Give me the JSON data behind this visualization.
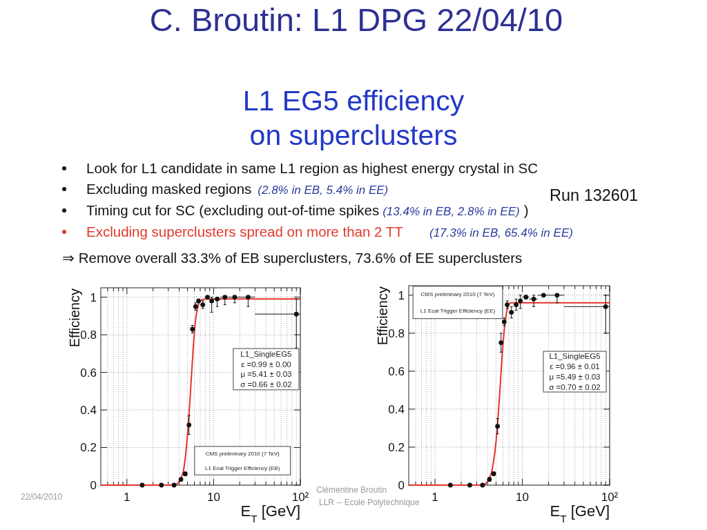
{
  "chart_data": [
    {
      "type": "other",
      "title": "C. Broutin: L1 DPG 22/04/10",
      "subtitle": "L1 EG5 efficiency on superclusters",
      "annotations": [
        "Look for L1 candidate in same L1 region as highest energy crystal in SC",
        "Excluding masked regions",
        "(2.8% in EB, 5.4% in EE)",
        "Timing cut for SC (excluding out-of-time spikes",
        "(13.4% in EB, 2.8% in EE)",
        ")",
        "Excluding superclusters spread on more than 2 TT",
        "(17.3% in EB, 65.4% in EE)",
        "⇒ Remove overall 33.3% of EB superclusters, 73.6% of EE superclusters",
        "Run 132601",
        "22/04/2010",
        "Clémentine Broutin",
        "LLR -- Ecole Polytechnique"
      ]
    },
    {
      "type": "scatter",
      "xlabel": "E$_{T}$ [GeV]",
      "ylabel": "Efficiency",
      "log": "x",
      "xlim": [
        0.5,
        100
      ],
      "ylim": [
        0,
        1.05
      ],
      "xticks": [
        {
          "value": 0.6,
          "label": null
        },
        {
          "value": 0.7,
          "label": null
        },
        {
          "value": 0.8,
          "label": null
        },
        {
          "value": 0.9,
          "label": null
        },
        {
          "value": 1,
          "label": "1"
        },
        {
          "value": 2,
          "label": null
        },
        {
          "value": 3,
          "label": null
        },
        {
          "value": 4,
          "label": null
        },
        {
          "value": 5,
          "label": null
        },
        {
          "value": 6,
          "label": null
        },
        {
          "value": 7,
          "label": null
        },
        {
          "value": 8,
          "label": null
        },
        {
          "value": 9,
          "label": null
        },
        {
          "value": 10,
          "label": "10"
        },
        {
          "value": 20,
          "label": null
        },
        {
          "value": 30,
          "label": null
        },
        {
          "value": 40,
          "label": null
        },
        {
          "value": 50,
          "label": null
        },
        {
          "value": 60,
          "label": null
        },
        {
          "value": 70,
          "label": null
        },
        {
          "value": 80,
          "label": null
        },
        {
          "value": 90,
          "label": null
        },
        {
          "value": 100,
          "label": "10²"
        }
      ],
      "yticks": [
        0,
        0.2,
        0.4,
        0.6,
        0.8,
        1
      ],
      "grid": true,
      "annotations": [
        "L1_SingleEG5",
        "ε =0.99 ± 0.00",
        "μ =5.41 ± 0.03",
        "σ =0.66 ± 0.02",
        "CMS preliminary 2010 (7 TeV)",
        "L1 Ecal Trigger Efficiency (EB)"
      ],
      "series": [
        {
          "color": "#111111",
          "marker": "circle",
          "x": [
            1.5,
            2.5,
            3.5,
            4.2,
            4.7,
            5.2,
            5.7,
            6.2,
            6.7,
            7.5,
            8.5,
            9.5,
            11,
            13.5,
            17.5,
            25,
            90
          ],
          "values": [
            0,
            0,
            0,
            0.03,
            0.06,
            0.32,
            0.83,
            0.95,
            0.98,
            0.96,
            1,
            0.98,
            0.99,
            1,
            1,
            1,
            0.91
          ],
          "errors": [
            null,
            null,
            null,
            0.01,
            0.01,
            0.05,
            0.02,
            0.02,
            0.01,
            0.02,
            null,
            [
              0.92,
              1
            ],
            [
              0.95,
              1
            ],
            [
              0.96,
              1
            ],
            [
              0.97,
              1
            ],
            [
              0.95,
              1
            ],
            [
              0.73,
              0.99
            ]
          ],
          "xerrors": [
            null,
            null,
            null,
            null,
            null,
            null,
            null,
            null,
            null,
            [
              7,
              8
            ],
            [
              8,
              9
            ],
            [
              9,
              10
            ],
            [
              10,
              12
            ],
            [
              12,
              15
            ],
            [
              15,
              20
            ],
            [
              20,
              30
            ],
            [
              30,
              100
            ]
          ]
        },
        {
          "type": "line",
          "color": "#e5332a",
          "marker": "none",
          "x": [
            0.5,
            3.5,
            4,
            4.5,
            5,
            5.4,
            5.8,
            6.2,
            6.6,
            7,
            8,
            100
          ],
          "values": [
            0,
            0,
            0.02,
            0.08,
            0.27,
            0.49,
            0.72,
            0.88,
            0.95,
            0.98,
            0.99,
            0.99
          ]
        }
      ]
    },
    {
      "type": "scatter",
      "xlabel": "E$_{T}$ [GeV]",
      "ylabel": "Efficiency",
      "log": "x",
      "xlim": [
        0.5,
        100
      ],
      "ylim": [
        0,
        1.05
      ],
      "xticks": [
        {
          "value": 0.6,
          "label": null
        },
        {
          "value": 0.7,
          "label": null
        },
        {
          "value": 0.8,
          "label": null
        },
        {
          "value": 0.9,
          "label": null
        },
        {
          "value": 1,
          "label": "1"
        },
        {
          "value": 2,
          "label": null
        },
        {
          "value": 3,
          "label": null
        },
        {
          "value": 4,
          "label": null
        },
        {
          "value": 5,
          "label": null
        },
        {
          "value": 6,
          "label": null
        },
        {
          "value": 7,
          "label": null
        },
        {
          "value": 8,
          "label": null
        },
        {
          "value": 9,
          "label": null
        },
        {
          "value": 10,
          "label": "10"
        },
        {
          "value": 20,
          "label": null
        },
        {
          "value": 30,
          "label": null
        },
        {
          "value": 40,
          "label": null
        },
        {
          "value": 50,
          "label": null
        },
        {
          "value": 60,
          "label": null
        },
        {
          "value": 70,
          "label": null
        },
        {
          "value": 80,
          "label": null
        },
        {
          "value": 90,
          "label": null
        },
        {
          "value": 100,
          "label": "10²"
        }
      ],
      "yticks": [
        0,
        0.2,
        0.4,
        0.6,
        0.8,
        1
      ],
      "grid": true,
      "annotations": [
        "L1_SingleEG5",
        "ε =0.96 ± 0.01",
        "μ =5.49 ± 0.03",
        "σ =0.70 ± 0.02",
        "CMS preliminary 2010 (7 TeV)",
        "L1 Ecal Trigger Efficiency (EE)"
      ],
      "series": [
        {
          "color": "#111111",
          "marker": "circle",
          "x": [
            1.5,
            2.5,
            3.5,
            4.2,
            4.7,
            5.2,
            5.7,
            6.2,
            6.7,
            7.5,
            8.5,
            9.5,
            11,
            13.5,
            17.5,
            25,
            90
          ],
          "values": [
            0,
            0,
            0,
            0.03,
            0.06,
            0.31,
            0.75,
            0.86,
            0.95,
            0.91,
            0.95,
            0.97,
            0.99,
            0.98,
            1,
            1,
            0.94
          ],
          "errors": [
            null,
            null,
            null,
            0.01,
            0.01,
            0.04,
            0.05,
            0.02,
            0.02,
            0.03,
            0.03,
            [
              0.93,
              1
            ],
            0.01,
            [
              0.94,
              1
            ],
            null,
            [
              0.96,
              1
            ],
            [
              0.8,
              1
            ]
          ],
          "xerrors": [
            null,
            null,
            null,
            null,
            null,
            null,
            null,
            null,
            null,
            [
              7,
              8
            ],
            [
              8,
              9
            ],
            [
              9,
              10
            ],
            [
              10,
              12
            ],
            [
              12,
              15
            ],
            [
              15,
              20
            ],
            [
              20,
              30
            ],
            [
              30,
              100
            ]
          ]
        },
        {
          "type": "line",
          "color": "#e5332a",
          "marker": "none",
          "x": [
            0.5,
            3.5,
            4,
            4.5,
            5,
            5.5,
            6,
            6.5,
            7,
            7.5,
            8.5,
            100
          ],
          "values": [
            0,
            0,
            0.02,
            0.08,
            0.23,
            0.48,
            0.74,
            0.89,
            0.95,
            0.96,
            0.96,
            0.96
          ]
        }
      ]
    }
  ]
}
